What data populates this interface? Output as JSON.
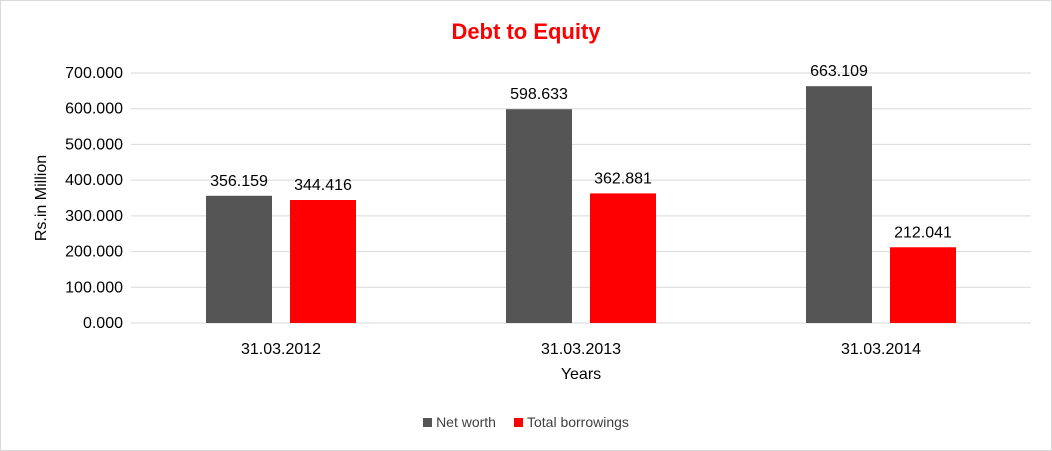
{
  "chart_data": {
    "type": "bar",
    "title": "Debt to Equity",
    "xlabel": "Years",
    "ylabel": "Rs.in Million",
    "categories": [
      "31.03.2012",
      "31.03.2013",
      "31.03.2014"
    ],
    "series": [
      {
        "name": "Net worth",
        "color": "#555555",
        "values": [
          356.159,
          598.633,
          663.109
        ],
        "labels": [
          "356.159",
          "598.633",
          "663.109"
        ]
      },
      {
        "name": "Total borrowings",
        "color": "#ff0000",
        "values": [
          344.416,
          362.881,
          212.041
        ],
        "labels": [
          "344.416",
          "362.881",
          "212.041"
        ]
      }
    ],
    "ylim": [
      0,
      700
    ],
    "yticks": [
      "0.000",
      "100.000",
      "200.000",
      "300.000",
      "400.000",
      "500.000",
      "600.000",
      "700.000"
    ],
    "grid": true,
    "legend_position": "bottom"
  }
}
